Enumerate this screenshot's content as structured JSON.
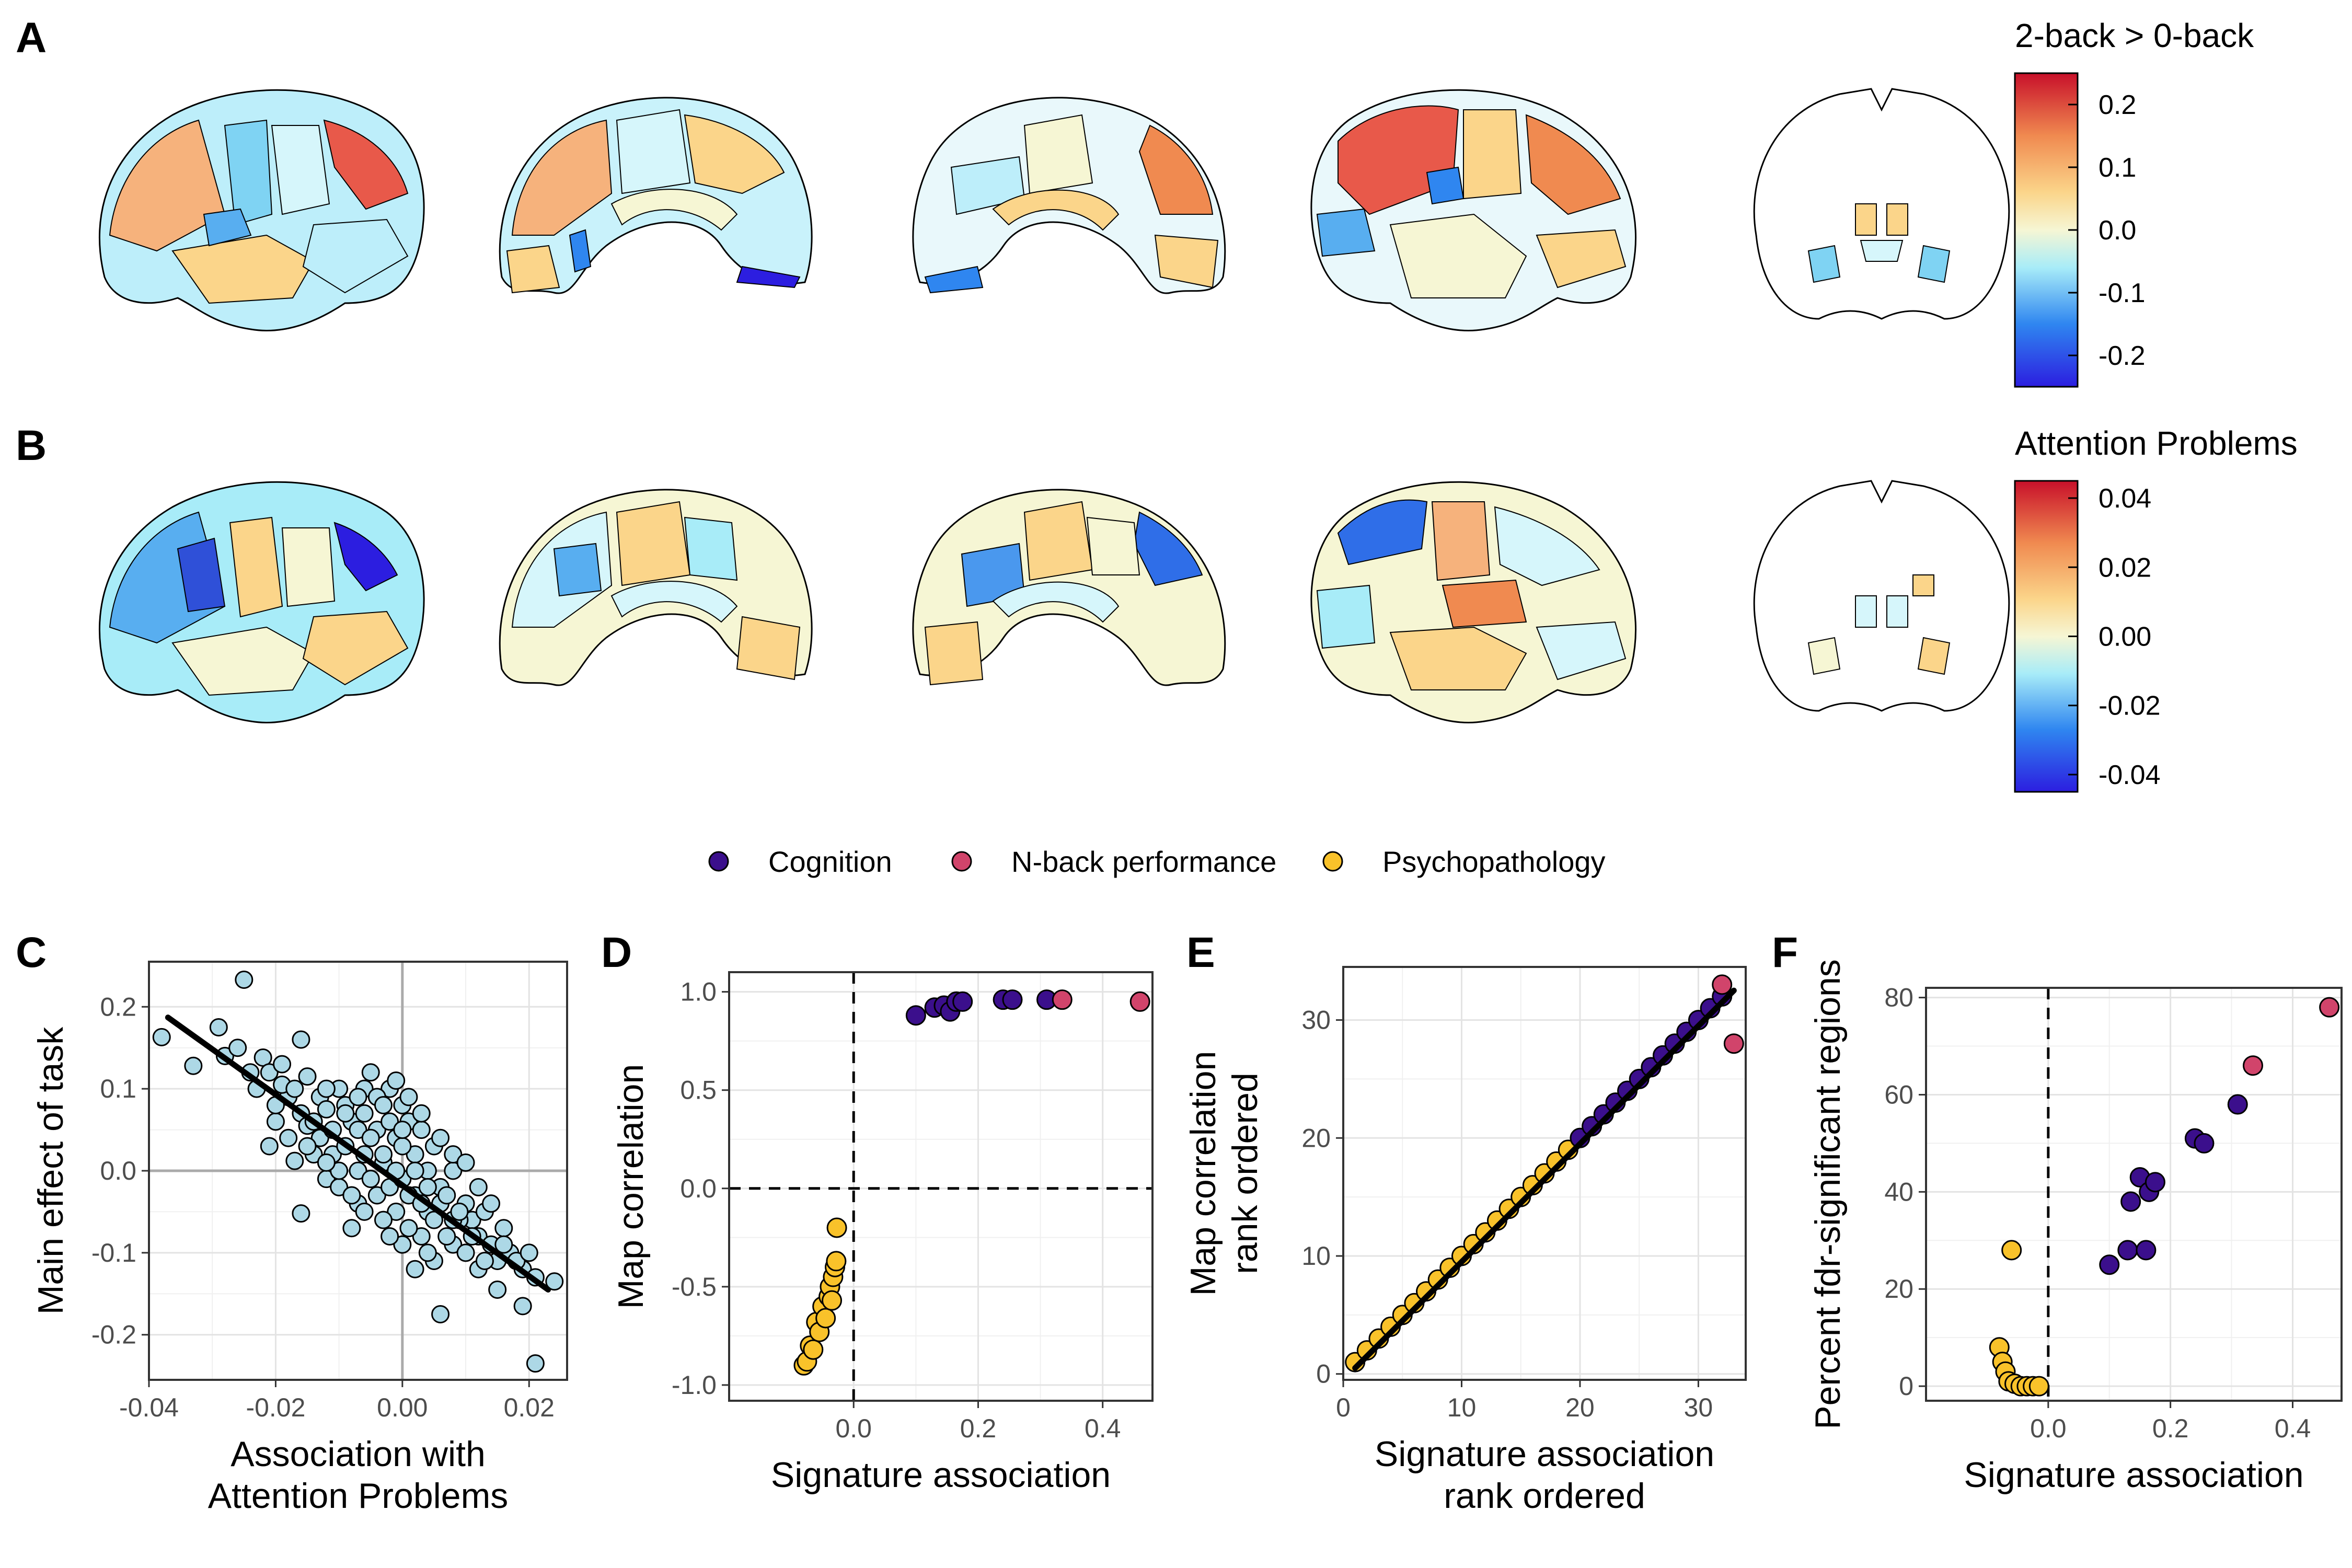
{
  "panel_letters": [
    "A",
    "B",
    "C",
    "D",
    "E",
    "F"
  ],
  "colors": {
    "cognition": "#3b0f8c",
    "nback": "#d1446b",
    "psychopathology": "#f9c22a",
    "scatter_c": "#add8e6"
  },
  "colorbars": [
    {
      "title": "2-back > 0-back",
      "ticks": [
        {
          "v": 0.2,
          "label": "0.2"
        },
        {
          "v": 0.1,
          "label": "0.1"
        },
        {
          "v": 0.0,
          "label": "0.0"
        },
        {
          "v": -0.1,
          "label": "-0.1"
        },
        {
          "v": -0.2,
          "label": "-0.2"
        }
      ],
      "range": [
        -0.25,
        0.25
      ]
    },
    {
      "title": "Attention Problems",
      "ticks": [
        {
          "v": 0.04,
          "label": "0.04"
        },
        {
          "v": 0.02,
          "label": "0.02"
        },
        {
          "v": 0.0,
          "label": "0.00"
        },
        {
          "v": -0.02,
          "label": "-0.02"
        },
        {
          "v": -0.04,
          "label": "-0.04"
        }
      ],
      "range": [
        -0.045,
        0.045
      ]
    }
  ],
  "legend": {
    "items": [
      {
        "label": "Cognition",
        "color": "#3b0f8c"
      },
      {
        "label": "N-back performance",
        "color": "#d1446b"
      },
      {
        "label": "Psychopathology",
        "color": "#f9c22a"
      }
    ]
  },
  "chart_data": [
    {
      "panel": "C",
      "type": "scatter",
      "xlabel": [
        "Association with",
        "Attention Problems"
      ],
      "ylabel": [
        "Main effect of task"
      ],
      "xlim": [
        -0.04,
        0.026
      ],
      "ylim": [
        -0.255,
        0.255
      ],
      "xticks": [
        {
          "v": -0.04,
          "label": "-0.04"
        },
        {
          "v": -0.02,
          "label": "-0.02"
        },
        {
          "v": 0.0,
          "label": "0.00"
        },
        {
          "v": 0.02,
          "label": "0.02"
        }
      ],
      "yticks": [
        {
          "v": 0.2,
          "label": "0.2"
        },
        {
          "v": 0.1,
          "label": "0.1"
        },
        {
          "v": 0.0,
          "label": "0.0"
        },
        {
          "v": -0.1,
          "label": "-0.1"
        },
        {
          "v": -0.2,
          "label": "-0.2"
        }
      ],
      "zero_lines": true,
      "dashed_zero": false,
      "fit": [
        [
          -0.037,
          0.187
        ],
        [
          0.023,
          -0.145
        ]
      ],
      "points": [
        [
          -0.038,
          0.163
        ],
        [
          -0.025,
          0.233
        ],
        [
          -0.029,
          0.175
        ],
        [
          -0.033,
          0.128
        ],
        [
          -0.028,
          0.14
        ],
        [
          -0.022,
          0.138
        ],
        [
          -0.016,
          0.16
        ],
        [
          -0.021,
          0.12
        ],
        [
          -0.018,
          0.09
        ],
        [
          -0.023,
          0.1
        ],
        [
          -0.019,
          0.105
        ],
        [
          -0.015,
          0.115
        ],
        [
          -0.02,
          0.06
        ],
        [
          -0.021,
          0.03
        ],
        [
          -0.016,
          0.07
        ],
        [
          -0.013,
          0.09
        ],
        [
          -0.012,
          0.075
        ],
        [
          -0.01,
          0.1
        ],
        [
          -0.016,
          -0.052
        ],
        [
          -0.017,
          0.012
        ],
        [
          -0.015,
          0.055
        ],
        [
          -0.013,
          0.04
        ],
        [
          -0.011,
          0.02
        ],
        [
          -0.009,
          0.08
        ],
        [
          -0.008,
          0.06
        ],
        [
          -0.006,
          0.1
        ],
        [
          -0.004,
          0.05
        ],
        [
          -0.002,
          0.1
        ],
        [
          0.0,
          0.08
        ],
        [
          0.001,
          0.06
        ],
        [
          -0.009,
          0.03
        ],
        [
          -0.007,
          0.0
        ],
        [
          -0.006,
          0.02
        ],
        [
          -0.005,
          -0.01
        ],
        [
          -0.003,
          0.01
        ],
        [
          -0.001,
          0.04
        ],
        [
          0.002,
          0.02
        ],
        [
          0.003,
          0.05
        ],
        [
          0.004,
          0.0
        ],
        [
          0.005,
          0.03
        ],
        [
          -0.008,
          -0.07
        ],
        [
          -0.007,
          -0.04
        ],
        [
          -0.004,
          -0.03
        ],
        [
          -0.002,
          -0.02
        ],
        [
          0.0,
          -0.01
        ],
        [
          0.002,
          -0.03
        ],
        [
          0.004,
          -0.05
        ],
        [
          0.006,
          -0.02
        ],
        [
          0.008,
          0.0
        ],
        [
          0.01,
          -0.04
        ],
        [
          0.011,
          -0.06
        ],
        [
          0.012,
          -0.08
        ],
        [
          0.013,
          -0.05
        ],
        [
          0.014,
          -0.09
        ],
        [
          0.015,
          -0.11
        ],
        [
          0.016,
          -0.07
        ],
        [
          0.017,
          -0.1
        ],
        [
          0.019,
          -0.12
        ],
        [
          0.021,
          -0.13
        ],
        [
          0.024,
          -0.135
        ],
        [
          0.006,
          -0.175
        ],
        [
          0.021,
          -0.235
        ],
        [
          0.019,
          -0.165
        ],
        [
          0.015,
          -0.145
        ],
        [
          0.008,
          -0.09
        ],
        [
          0.005,
          -0.11
        ],
        [
          0.003,
          -0.08
        ],
        [
          0.001,
          -0.07
        ],
        [
          -0.001,
          -0.05
        ],
        [
          -0.003,
          -0.06
        ],
        [
          0.009,
          -0.06
        ],
        [
          0.007,
          -0.08
        ],
        [
          0.01,
          -0.1
        ],
        [
          0.012,
          -0.12
        ],
        [
          -0.011,
          0.05
        ],
        [
          -0.014,
          0.02
        ],
        [
          -0.012,
          -0.01
        ],
        [
          -0.01,
          -0.02
        ],
        [
          -0.006,
          0.07
        ],
        [
          -0.004,
          0.09
        ],
        [
          -0.002,
          0.06
        ],
        [
          0.0,
          0.03
        ],
        [
          0.002,
          0.0
        ],
        [
          0.004,
          -0.02
        ],
        [
          0.006,
          -0.04
        ],
        [
          0.008,
          -0.06
        ],
        [
          0.011,
          -0.08
        ],
        [
          0.013,
          -0.11
        ],
        [
          -0.018,
          0.04
        ],
        [
          -0.02,
          0.08
        ],
        [
          -0.017,
          0.1
        ],
        [
          -0.024,
          0.12
        ],
        [
          -0.026,
          0.15
        ],
        [
          -0.019,
          0.13
        ],
        [
          -0.012,
          0.1
        ],
        [
          -0.009,
          0.07
        ],
        [
          -0.007,
          0.05
        ],
        [
          -0.005,
          0.04
        ],
        [
          -0.003,
          0.02
        ],
        [
          -0.001,
          0.0
        ],
        [
          0.001,
          -0.03
        ],
        [
          0.003,
          -0.04
        ],
        [
          0.005,
          -0.06
        ],
        [
          0.007,
          -0.03
        ],
        [
          0.009,
          -0.05
        ],
        [
          0.016,
          -0.09
        ],
        [
          0.018,
          -0.11
        ],
        [
          0.02,
          -0.1
        ],
        [
          0.0,
          -0.09
        ],
        [
          -0.002,
          -0.08
        ],
        [
          0.004,
          -0.1
        ],
        [
          0.002,
          -0.12
        ],
        [
          -0.006,
          -0.05
        ],
        [
          -0.008,
          -0.03
        ],
        [
          -0.01,
          0.0
        ],
        [
          -0.012,
          0.01
        ],
        [
          -0.014,
          0.06
        ],
        [
          -0.015,
          0.03
        ],
        [
          0.001,
          0.09
        ],
        [
          -0.001,
          0.11
        ],
        [
          0.003,
          0.07
        ],
        [
          0.006,
          0.04
        ],
        [
          0.008,
          0.02
        ],
        [
          0.01,
          0.01
        ],
        [
          0.012,
          -0.02
        ],
        [
          0.014,
          -0.04
        ],
        [
          -0.005,
          0.12
        ],
        [
          -0.007,
          0.09
        ],
        [
          -0.003,
          0.08
        ],
        [
          0.0,
          0.05
        ]
      ]
    },
    {
      "panel": "D",
      "type": "scatter",
      "xlabel": [
        "Signature association"
      ],
      "ylabel": [
        "Map correlation"
      ],
      "xlim": [
        -0.2,
        0.48
      ],
      "ylim": [
        -1.08,
        1.1
      ],
      "xticks": [
        {
          "v": 0.0,
          "label": "0.0"
        },
        {
          "v": 0.2,
          "label": "0.2"
        },
        {
          "v": 0.4,
          "label": "0.4"
        }
      ],
      "yticks": [
        {
          "v": 1.0,
          "label": "1.0"
        },
        {
          "v": 0.5,
          "label": "0.5"
        },
        {
          "v": 0.0,
          "label": "0.0"
        },
        {
          "v": -0.5,
          "label": "-0.5"
        },
        {
          "v": -1.0,
          "label": "-1.0"
        }
      ],
      "zero_lines": true,
      "dashed_zero": true,
      "groups": [
        {
          "name": "Cognition",
          "color": "#3b0f8c",
          "points": [
            [
              0.1,
              0.88
            ],
            [
              0.13,
              0.92
            ],
            [
              0.145,
              0.93
            ],
            [
              0.155,
              0.9
            ],
            [
              0.165,
              0.95
            ],
            [
              0.175,
              0.95
            ],
            [
              0.24,
              0.96
            ],
            [
              0.255,
              0.96
            ],
            [
              0.31,
              0.96
            ]
          ]
        },
        {
          "name": "N-back performance",
          "color": "#d1446b",
          "points": [
            [
              0.335,
              0.96
            ],
            [
              0.46,
              0.95
            ]
          ]
        },
        {
          "name": "Psychopathology",
          "color": "#f9c22a",
          "points": [
            [
              -0.08,
              -0.9
            ],
            [
              -0.075,
              -0.88
            ],
            [
              -0.07,
              -0.8
            ],
            [
              -0.065,
              -0.82
            ],
            [
              -0.06,
              -0.68
            ],
            [
              -0.055,
              -0.73
            ],
            [
              -0.05,
              -0.6
            ],
            [
              -0.045,
              -0.66
            ],
            [
              -0.04,
              -0.55
            ],
            [
              -0.038,
              -0.5
            ],
            [
              -0.035,
              -0.57
            ],
            [
              -0.033,
              -0.45
            ],
            [
              -0.03,
              -0.4
            ],
            [
              -0.028,
              -0.37
            ],
            [
              -0.027,
              -0.2
            ]
          ]
        }
      ]
    },
    {
      "panel": "E",
      "type": "scatter",
      "xlabel": [
        "Signature association",
        "rank ordered"
      ],
      "ylabel": [
        "Map correlation",
        "rank ordered"
      ],
      "xlim": [
        0,
        34
      ],
      "ylim": [
        -0.5,
        34.5
      ],
      "xticks": [
        {
          "v": 0,
          "label": "0"
        },
        {
          "v": 10,
          "label": "10"
        },
        {
          "v": 20,
          "label": "20"
        },
        {
          "v": 30,
          "label": "30"
        }
      ],
      "yticks": [
        {
          "v": 0,
          "label": "0"
        },
        {
          "v": 10,
          "label": "10"
        },
        {
          "v": 20,
          "label": "20"
        },
        {
          "v": 30,
          "label": "30"
        }
      ],
      "zero_lines": false,
      "dashed_zero": false,
      "fit": [
        [
          1,
          0.5
        ],
        [
          33,
          32.5
        ]
      ],
      "groups": [
        {
          "name": "Psychopathology",
          "color": "#f9c22a",
          "points": [
            [
              1,
              1
            ],
            [
              2,
              2
            ],
            [
              3,
              3
            ],
            [
              4,
              4
            ],
            [
              5,
              5
            ],
            [
              6,
              6
            ],
            [
              7,
              7
            ],
            [
              8,
              8
            ],
            [
              9,
              9
            ],
            [
              10,
              10
            ],
            [
              11,
              11
            ],
            [
              12,
              12
            ],
            [
              13,
              13
            ],
            [
              14,
              14
            ],
            [
              15,
              15
            ],
            [
              16,
              16
            ],
            [
              17,
              17
            ],
            [
              18,
              18
            ],
            [
              19,
              19
            ]
          ]
        },
        {
          "name": "Cognition",
          "color": "#3b0f8c",
          "points": [
            [
              20,
              20
            ],
            [
              21,
              21
            ],
            [
              22,
              22
            ],
            [
              23,
              23
            ],
            [
              24,
              24
            ],
            [
              25,
              25
            ],
            [
              26,
              26
            ],
            [
              27,
              27
            ],
            [
              28,
              28
            ],
            [
              29,
              29
            ],
            [
              30,
              30
            ],
            [
              31,
              31
            ],
            [
              32,
              32
            ]
          ]
        },
        {
          "name": "N-back performance",
          "color": "#d1446b",
          "points": [
            [
              32,
              33
            ],
            [
              33,
              28
            ]
          ]
        }
      ]
    },
    {
      "panel": "F",
      "type": "scatter",
      "xlabel": [
        "Signature association"
      ],
      "ylabel": [
        "Percent fdr-significant regions"
      ],
      "xlim": [
        -0.2,
        0.48
      ],
      "ylim": [
        -3,
        82
      ],
      "xticks": [
        {
          "v": 0.0,
          "label": "0.0"
        },
        {
          "v": 0.2,
          "label": "0.2"
        },
        {
          "v": 0.4,
          "label": "0.4"
        }
      ],
      "yticks": [
        {
          "v": 0,
          "label": "0"
        },
        {
          "v": 20,
          "label": "20"
        },
        {
          "v": 40,
          "label": "40"
        },
        {
          "v": 60,
          "label": "60"
        },
        {
          "v": 80,
          "label": "80"
        }
      ],
      "zero_lines": false,
      "dashed_zero": true,
      "vline_only": true,
      "groups": [
        {
          "name": "Psychopathology",
          "color": "#f9c22a",
          "points": [
            [
              -0.08,
              8
            ],
            [
              -0.075,
              5
            ],
            [
              -0.07,
              3
            ],
            [
              -0.065,
              1
            ],
            [
              -0.06,
              28
            ],
            [
              -0.055,
              0.5
            ],
            [
              -0.045,
              0
            ],
            [
              -0.035,
              0
            ],
            [
              -0.025,
              0
            ],
            [
              -0.015,
              0
            ]
          ]
        },
        {
          "name": "Cognition",
          "color": "#3b0f8c",
          "points": [
            [
              0.1,
              25
            ],
            [
              0.13,
              28
            ],
            [
              0.135,
              38
            ],
            [
              0.15,
              43
            ],
            [
              0.16,
              28
            ],
            [
              0.165,
              40
            ],
            [
              0.175,
              42
            ],
            [
              0.24,
              51
            ],
            [
              0.255,
              50
            ],
            [
              0.31,
              58
            ]
          ]
        },
        {
          "name": "N-back performance",
          "color": "#d1446b",
          "points": [
            [
              0.335,
              66
            ],
            [
              0.46,
              78
            ]
          ]
        }
      ]
    }
  ]
}
